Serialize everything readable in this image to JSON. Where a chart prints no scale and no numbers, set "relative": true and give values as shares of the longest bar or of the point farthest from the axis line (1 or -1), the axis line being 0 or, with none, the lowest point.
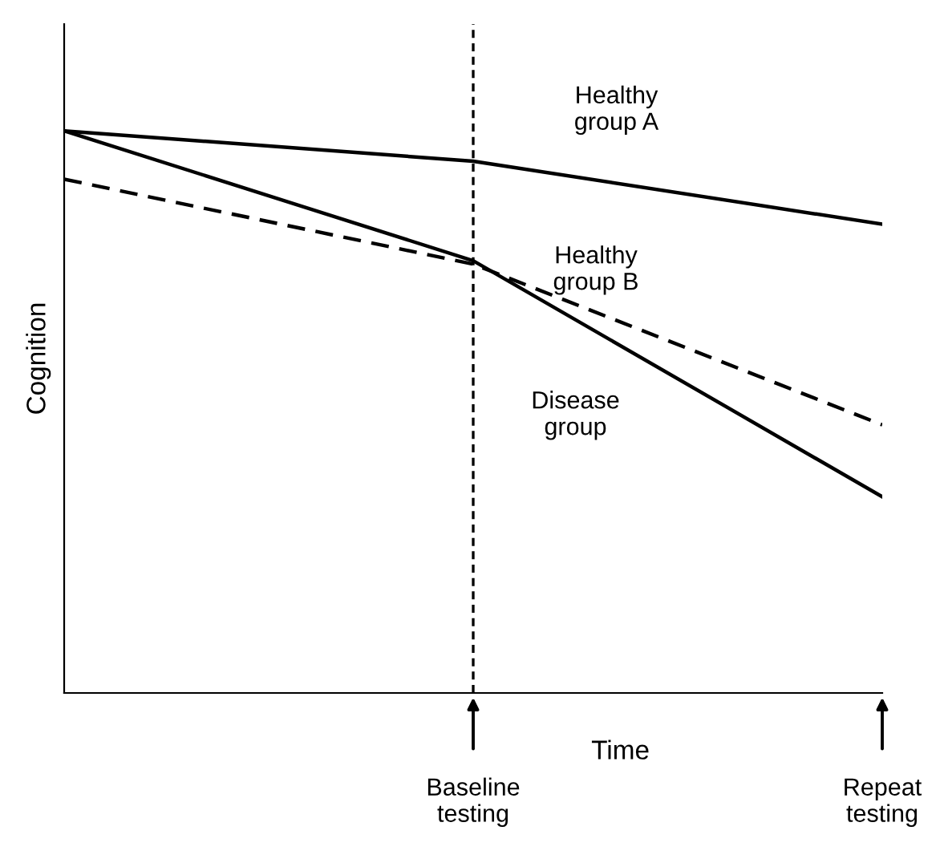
{
  "chart_data": {
    "type": "line",
    "relative": true,
    "xlabel": "Time",
    "ylabel": "Cognition",
    "categories": [
      null,
      "Baseline\ntesting",
      "Repeat\ntesting"
    ],
    "series": [
      {
        "name": "Healthy\ngroup A",
        "color": "#000000",
        "line_style": "solid",
        "values": [
          1,
          0.946,
          0.834
        ]
      },
      {
        "name": "Healthy\ngroup B",
        "color": "#000000",
        "line_style": "dashed",
        "values": [
          0.914,
          0.763,
          0.477
        ]
      },
      {
        "name": "Disease\ngroup",
        "color": "#000000",
        "line_style": "solid",
        "values": [
          1,
          0.769,
          0.349
        ]
      }
    ],
    "ref_lines": [
      {
        "axis": "x",
        "value": "Baseline\ntesting",
        "label": null,
        "color": "#000000",
        "line_style": "dotted"
      }
    ],
    "grid": false,
    "legend": false,
    "marker": "none"
  }
}
